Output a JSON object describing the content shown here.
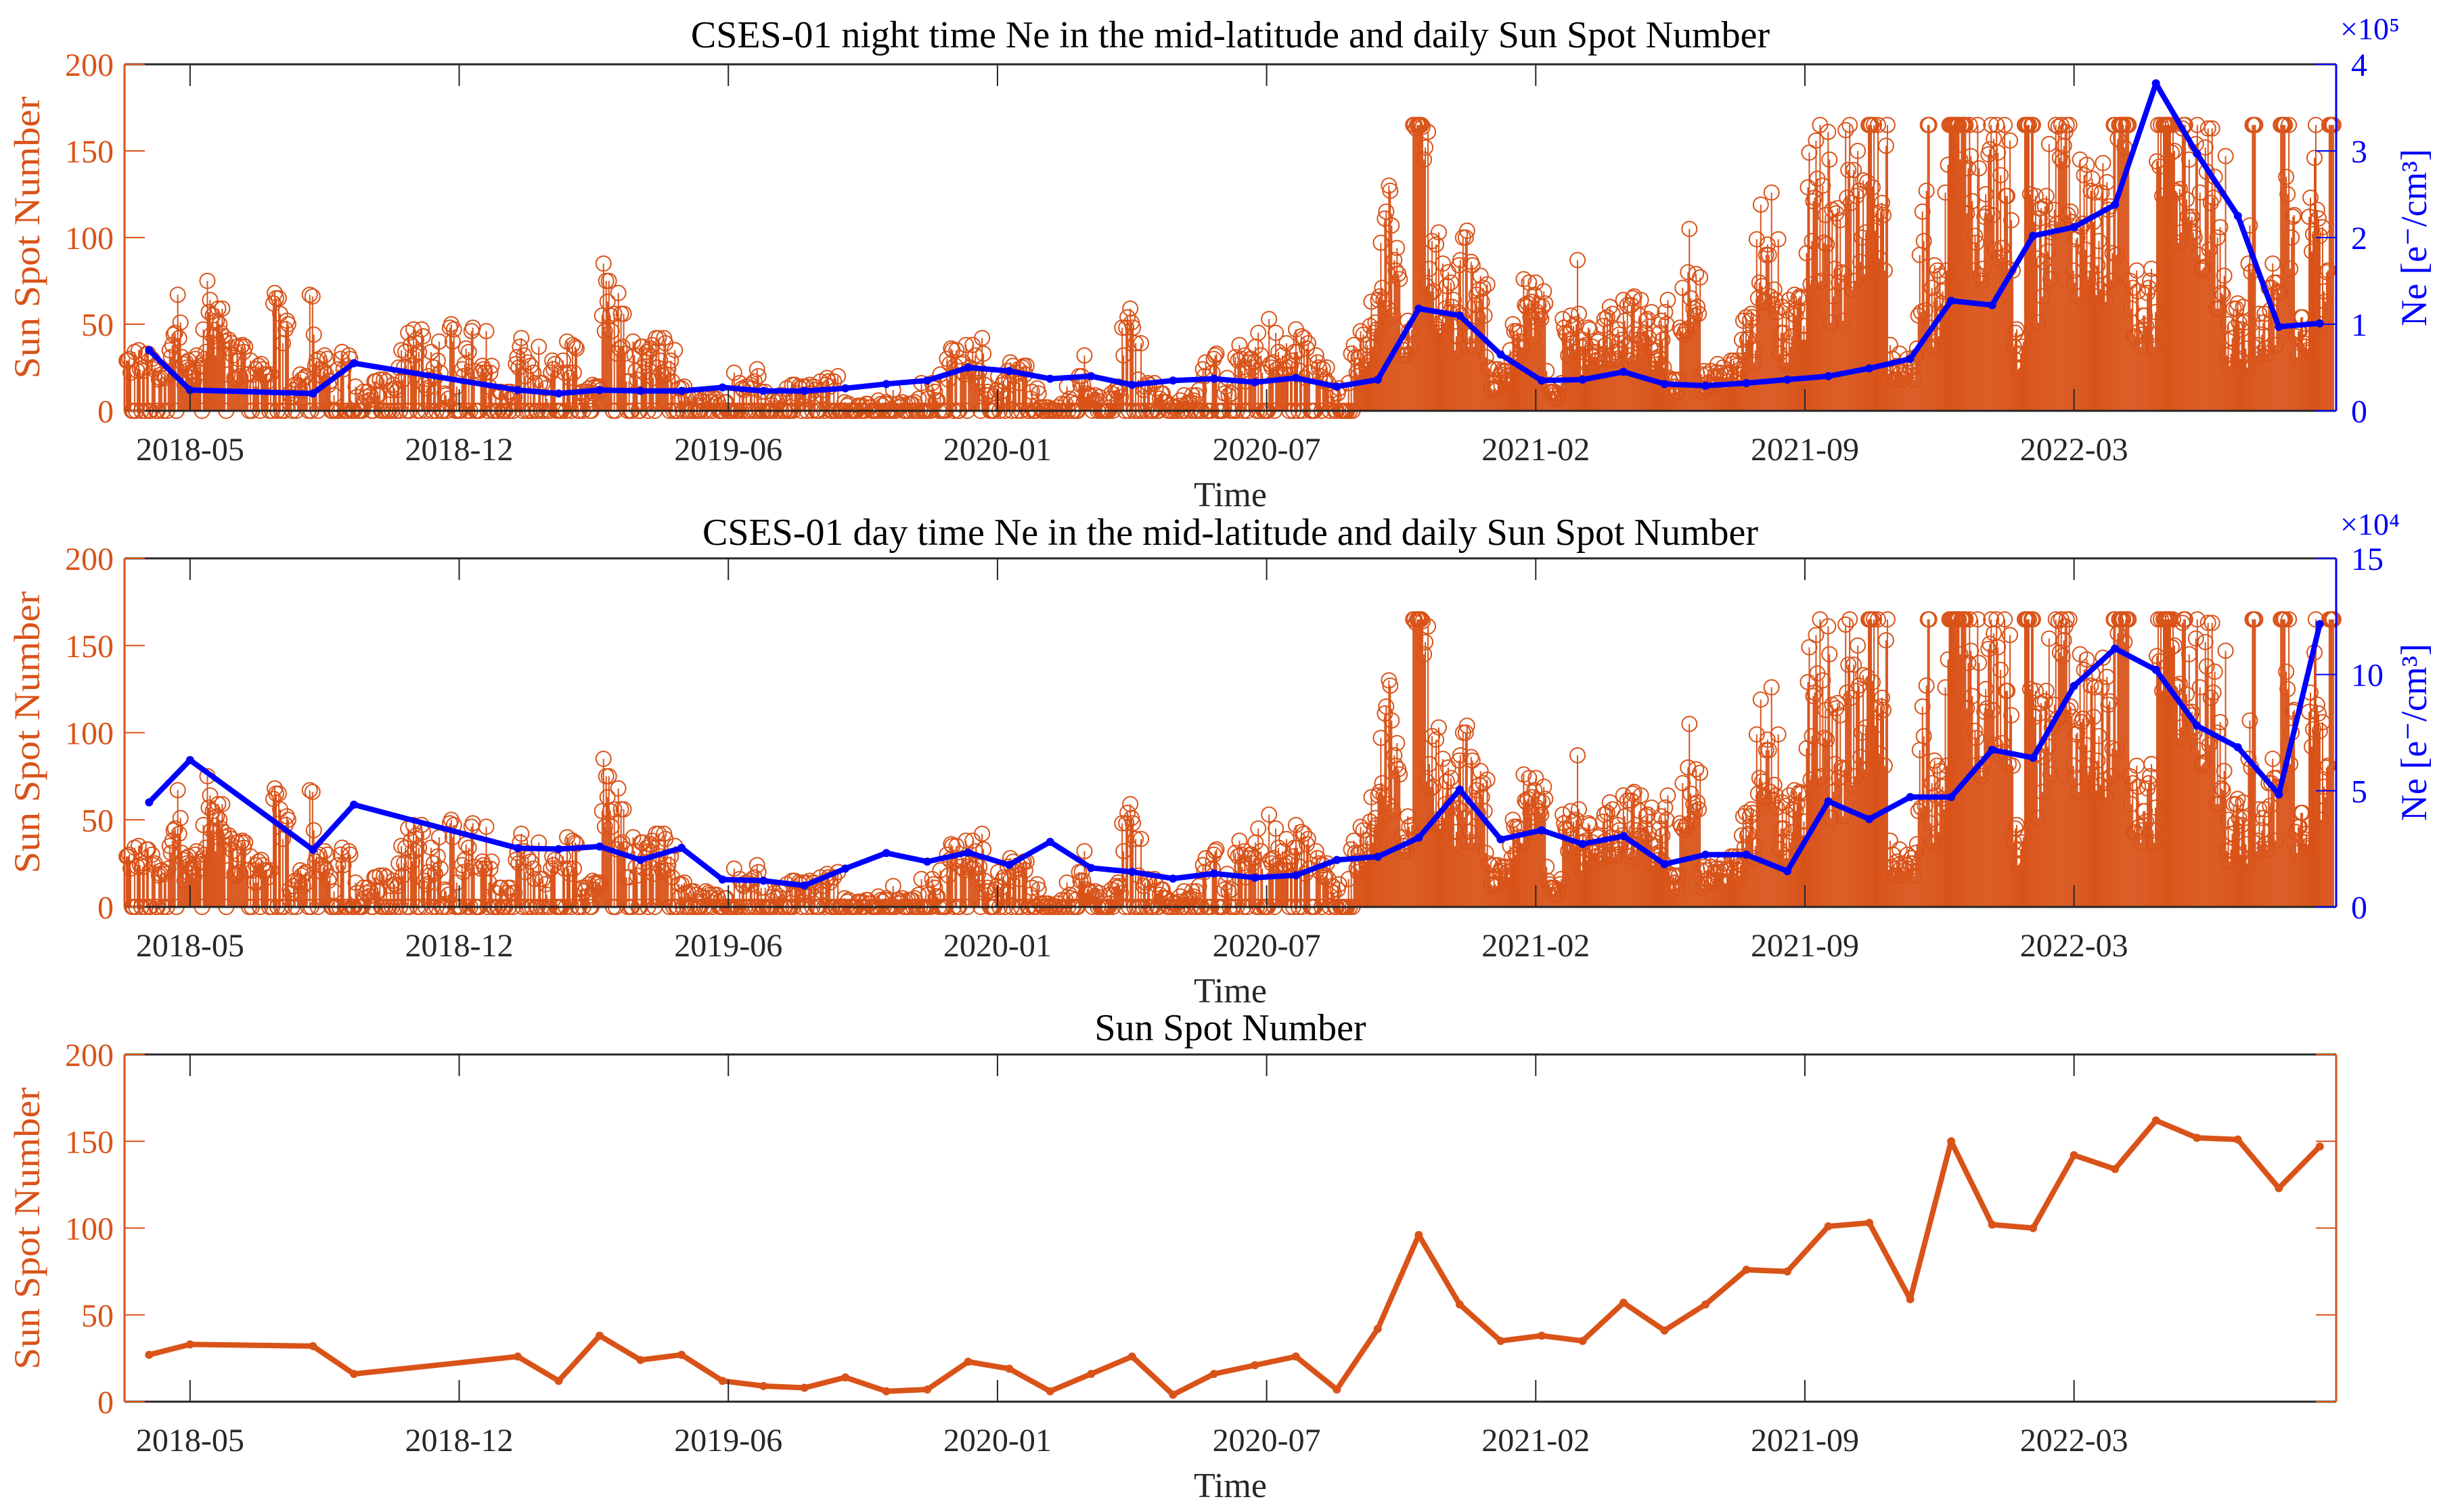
{
  "colors": {
    "ssn": "#D95319",
    "ne": "#0000FF",
    "axis": "#262626"
  },
  "months": [
    "2018-04",
    "2018-05",
    "2018-08",
    "2018-09",
    "2019-01",
    "2019-02",
    "2019-03",
    "2019-04",
    "2019-05",
    "2019-06",
    "2019-07",
    "2019-08",
    "2019-09",
    "2019-10",
    "2019-11",
    "2019-12",
    "2020-01",
    "2020-02",
    "2020-03",
    "2020-04",
    "2020-05",
    "2020-06",
    "2020-07",
    "2020-08",
    "2020-09",
    "2020-10",
    "2020-11",
    "2020-12",
    "2021-01",
    "2021-02",
    "2021-03",
    "2021-04",
    "2021-05",
    "2021-06",
    "2021-07",
    "2021-08",
    "2021-09",
    "2021-10",
    "2021-11",
    "2021-12",
    "2022-01",
    "2022-02",
    "2022-03",
    "2022-04",
    "2022-05",
    "2022-06",
    "2022-07",
    "2022-08",
    "2022-09"
  ],
  "monthly_ssn": [
    27,
    33,
    32,
    16,
    26,
    12,
    38,
    24,
    27,
    12,
    9,
    8,
    14,
    6,
    7,
    23,
    19,
    6,
    16,
    26,
    4,
    16,
    21,
    26,
    7,
    42,
    96,
    56,
    35,
    38,
    35,
    57,
    41,
    56,
    76,
    75,
    101,
    103,
    59,
    150,
    102,
    100,
    142,
    134,
    162,
    152,
    151,
    123,
    147
  ],
  "chart_data": [
    {
      "type": "line",
      "title": "CSES-01 night time Ne in the mid-latitude and daily Sun Spot Number",
      "xlabel": "Time",
      "ylabel": "Sun Spot Number",
      "ylabel_right": "Ne [e⁻/cm³]",
      "y_exponent_right": "×10⁵",
      "ylim": [
        0,
        200
      ],
      "ylim_right": [
        0,
        4
      ],
      "yticks": [
        "0",
        "50",
        "100",
        "150",
        "200"
      ],
      "yticks_right": [
        "0",
        "1",
        "2",
        "3",
        "4"
      ],
      "xticks": [
        "2018-05",
        "2018-12",
        "2019-06",
        "2020-01",
        "2020-07",
        "2021-02",
        "2021-09",
        "2022-03"
      ],
      "series": [
        {
          "name": "Daily Sun Spot Number",
          "style": "stem",
          "axis": "left"
        },
        {
          "name": "Night time Ne (×10⁵ e⁻/cm³)",
          "style": "line",
          "axis": "right",
          "values": [
            0.7,
            0.24,
            0.2,
            0.55,
            0.24,
            0.2,
            0.24,
            0.23,
            0.23,
            0.27,
            0.23,
            0.23,
            0.26,
            0.31,
            0.35,
            0.5,
            0.46,
            0.37,
            0.4,
            0.3,
            0.35,
            0.37,
            0.33,
            0.38,
            0.28,
            0.36,
            1.18,
            1.1,
            0.65,
            0.35,
            0.36,
            0.45,
            0.31,
            0.29,
            0.32,
            0.36,
            0.4,
            0.49,
            0.6,
            1.27,
            1.22,
            2.02,
            2.12,
            2.38,
            3.78,
            2.97,
            2.25,
            0.97,
            1.01
          ]
        }
      ]
    },
    {
      "type": "line",
      "title": "CSES-01 day time Ne in the mid-latitude and daily Sun Spot Number",
      "xlabel": "Time",
      "ylabel": "Sun Spot Number",
      "ylabel_right": "Ne [e⁻/cm³]",
      "y_exponent_right": "×10⁴",
      "ylim": [
        0,
        200
      ],
      "ylim_right": [
        0,
        15
      ],
      "yticks": [
        "0",
        "50",
        "100",
        "150",
        "200"
      ],
      "yticks_right": [
        "0",
        "5",
        "10",
        "15"
      ],
      "xticks": [
        "2018-05",
        "2018-12",
        "2019-06",
        "2020-01",
        "2020-07",
        "2021-02",
        "2021-09",
        "2022-03"
      ],
      "series": [
        {
          "name": "Daily Sun Spot Number",
          "style": "stem",
          "axis": "left"
        },
        {
          "name": "Day time Ne (×10⁴ e⁻/cm³)",
          "style": "line",
          "axis": "right",
          "values": [
            4.5,
            6.32,
            2.46,
            4.4,
            2.53,
            2.49,
            2.6,
            2.02,
            2.54,
            1.18,
            1.13,
            0.92,
            1.65,
            2.32,
            1.95,
            2.34,
            1.81,
            2.8,
            1.68,
            1.51,
            1.22,
            1.44,
            1.26,
            1.36,
            2.02,
            2.16,
            2.98,
            5.05,
            2.91,
            3.3,
            2.71,
            3.05,
            1.84,
            2.25,
            2.25,
            1.54,
            4.54,
            3.78,
            4.73,
            4.73,
            6.76,
            6.42,
            9.51,
            11.12,
            10.2,
            7.8,
            6.87,
            4.84,
            12.17
          ]
        }
      ]
    },
    {
      "type": "line",
      "title": "Sun Spot Number",
      "xlabel": "Time",
      "ylabel": "Sun Spot Number",
      "ylim": [
        0,
        200
      ],
      "yticks": [
        "0",
        "50",
        "100",
        "150",
        "200"
      ],
      "xticks": [
        "2018-05",
        "2018-12",
        "2019-06",
        "2020-01",
        "2020-07",
        "2021-02",
        "2021-09",
        "2022-03"
      ],
      "series": [
        {
          "name": "Monthly Sun Spot Number",
          "style": "line",
          "axis": "left",
          "values_ref": "monthly_ssn"
        }
      ]
    }
  ]
}
